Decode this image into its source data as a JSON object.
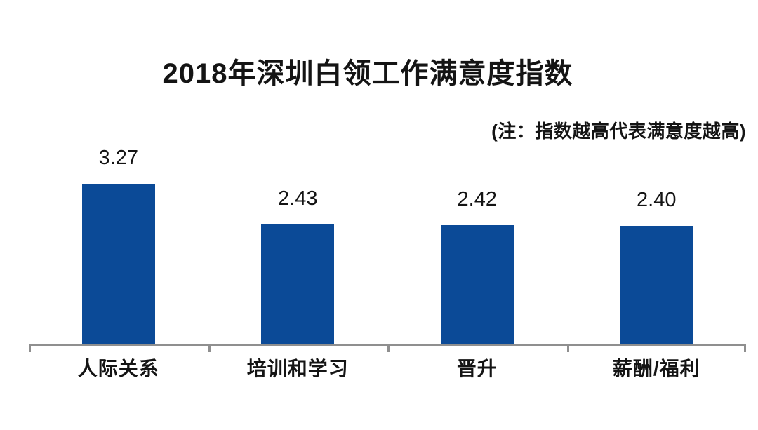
{
  "watermark": "…",
  "chart_data": {
    "type": "bar",
    "title": "2018年深圳白领工作满意度指数",
    "annotation": "(注：指数越高代表满意度越高)",
    "categories": [
      "人际关系",
      "培训和学习",
      "晋升",
      "薪酬/福利"
    ],
    "values": [
      3.27,
      2.43,
      2.42,
      2.4
    ],
    "value_labels": [
      "3.27",
      "2.43",
      "2.42",
      "2.40"
    ],
    "xlabel": "",
    "ylabel": "",
    "ylim": [
      0,
      3.6
    ],
    "bar_color": "#0B4A97",
    "axis_color": "#8F8F8F",
    "text_color": "#141414",
    "grid": false,
    "legend": "none",
    "value_labels_position": "above-bars"
  }
}
